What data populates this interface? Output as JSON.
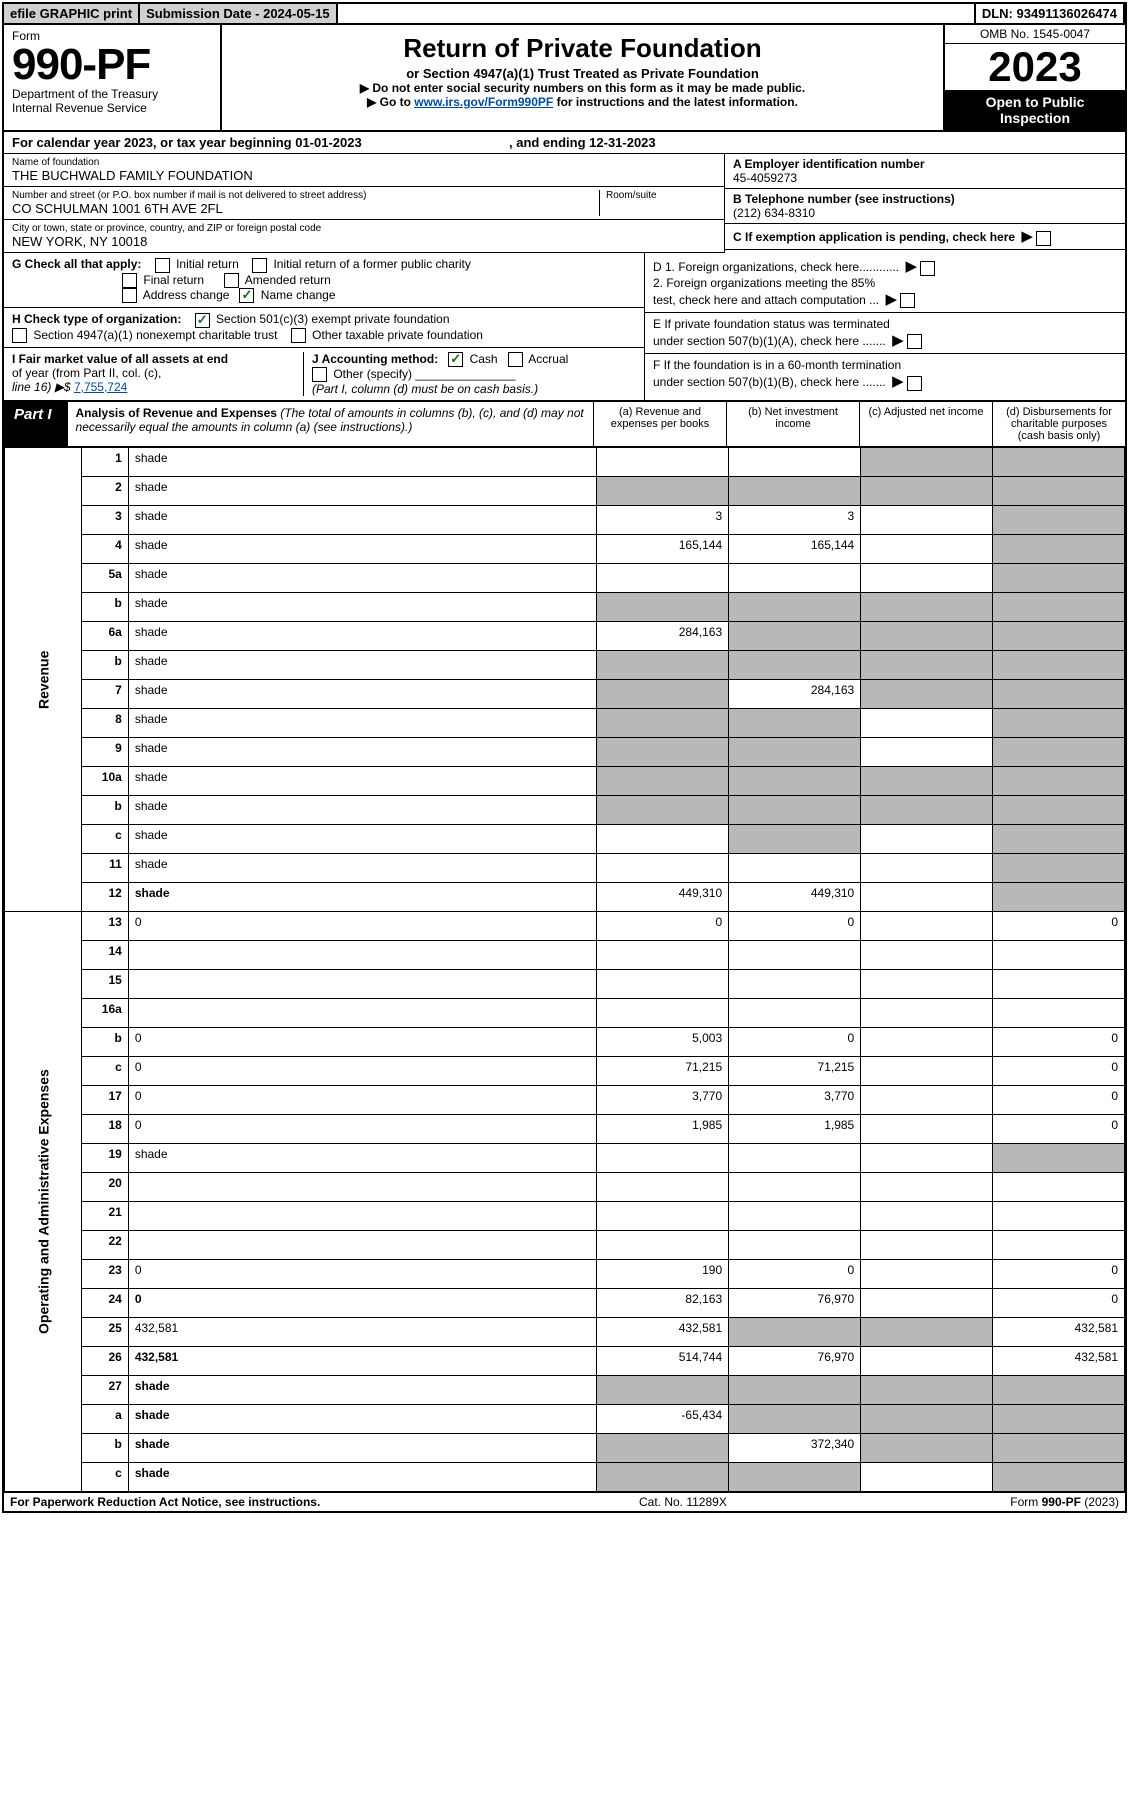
{
  "topstrip": {
    "efile": "efile GRAPHIC print",
    "submission": "Submission Date - 2024-05-15",
    "dln": "DLN: 93491136026474"
  },
  "header": {
    "form_word": "Form",
    "form_no": "990-PF",
    "dept1": "Department of the Treasury",
    "dept2": "Internal Revenue Service",
    "title": "Return of Private Foundation",
    "subtitle": "or Section 4947(a)(1) Trust Treated as Private Foundation",
    "note1": "▶ Do not enter social security numbers on this form as it may be made public.",
    "note2_pre": "▶ Go to ",
    "note2_link": "www.irs.gov/Form990PF",
    "note2_post": " for instructions and the latest information.",
    "omb": "OMB No. 1545-0047",
    "year": "2023",
    "inspect1": "Open to Public",
    "inspect2": "Inspection"
  },
  "calyear": {
    "a": "For calendar year 2023, or tax year beginning 01-01-2023",
    "b": ", and ending 12-31-2023"
  },
  "entity": {
    "name_lbl": "Name of foundation",
    "name_val": "THE BUCHWALD FAMILY FOUNDATION",
    "addr_lbl": "Number and street (or P.O. box number if mail is not delivered to street address)",
    "addr_val": "CO SCHULMAN 1001 6TH AVE 2FL",
    "room_lbl": "Room/suite",
    "city_lbl": "City or town, state or province, country, and ZIP or foreign postal code",
    "city_val": "NEW YORK, NY  10018",
    "A_lbl": "A Employer identification number",
    "A_val": "45-4059273",
    "B_lbl": "B Telephone number (see instructions)",
    "B_val": "(212) 634-8310",
    "C_lbl": "C If exemption application is pending, check here",
    "D1": "D 1. Foreign organizations, check here............",
    "D2a": "2. Foreign organizations meeting the 85%",
    "D2b": "   test, check here and attach computation ...",
    "E1": "E  If private foundation status was terminated",
    "E2": "   under section 507(b)(1)(A), check here .......",
    "F1": "F  If the foundation is in a 60-month termination",
    "F2": "   under section 507(b)(1)(B), check here .......",
    "G_lbl": "G Check all that apply:",
    "G_items": [
      "Initial return",
      "Initial return of a former public charity",
      "Final return",
      "Amended return",
      "Address change",
      "Name change"
    ],
    "H_lbl": "H Check type of organization:",
    "H1": "Section 501(c)(3) exempt private foundation",
    "H2": "Section 4947(a)(1) nonexempt charitable trust",
    "H3": "Other taxable private foundation",
    "I1": "I Fair market value of all assets at end",
    "I2": "of year (from Part II, col. (c),",
    "I3": "line 16) ▶$",
    "I_val": "7,755,724",
    "J_lbl": "J Accounting method:",
    "J_cash": "Cash",
    "J_accrual": "Accrual",
    "J_other": "Other (specify)",
    "J_note": "(Part I, column (d) must be on cash basis.)"
  },
  "part1": {
    "label": "Part I",
    "title": "Analysis of Revenue and Expenses",
    "title_note": " (The total of amounts in columns (b), (c), and (d) may not necessarily equal the amounts in column (a) (see instructions).)",
    "col_a": "(a)  Revenue and expenses per books",
    "col_b": "(b)  Net investment income",
    "col_c": "(c)  Adjusted net income",
    "col_d": "(d)  Disbursements for charitable purposes (cash basis only)"
  },
  "side": {
    "rev": "Revenue",
    "exp": "Operating and Administrative Expenses"
  },
  "rows": [
    {
      "n": "1",
      "d": "shade",
      "a": "",
      "b": "",
      "c": "shade"
    },
    {
      "n": "2",
      "d": "shade",
      "a": "shade",
      "b": "shade",
      "c": "shade"
    },
    {
      "n": "3",
      "d": "shade",
      "a": "3",
      "b": "3",
      "c": ""
    },
    {
      "n": "4",
      "d": "shade",
      "a": "165,144",
      "b": "165,144",
      "c": ""
    },
    {
      "n": "5a",
      "d": "shade",
      "a": "",
      "b": "",
      "c": ""
    },
    {
      "n": "b",
      "d": "shade",
      "a": "shade",
      "b": "shade",
      "c": "shade"
    },
    {
      "n": "6a",
      "d": "shade",
      "a": "284,163",
      "b": "shade",
      "c": "shade"
    },
    {
      "n": "b",
      "d": "shade",
      "a": "shade",
      "b": "shade",
      "c": "shade"
    },
    {
      "n": "7",
      "d": "shade",
      "a": "shade",
      "b": "284,163",
      "c": "shade"
    },
    {
      "n": "8",
      "d": "shade",
      "a": "shade",
      "b": "shade",
      "c": ""
    },
    {
      "n": "9",
      "d": "shade",
      "a": "shade",
      "b": "shade",
      "c": ""
    },
    {
      "n": "10a",
      "d": "shade",
      "a": "shade",
      "b": "shade",
      "c": "shade"
    },
    {
      "n": "b",
      "d": "shade",
      "a": "shade",
      "b": "shade",
      "c": "shade"
    },
    {
      "n": "c",
      "d": "shade",
      "a": "",
      "b": "shade",
      "c": ""
    },
    {
      "n": "11",
      "d": "shade",
      "a": "",
      "b": "",
      "c": ""
    },
    {
      "n": "12",
      "d": "shade",
      "a": "449,310",
      "b": "449,310",
      "c": "",
      "bold": true
    },
    {
      "n": "13",
      "d": "0",
      "a": "0",
      "b": "0",
      "c": ""
    },
    {
      "n": "14",
      "d": "",
      "a": "",
      "b": "",
      "c": ""
    },
    {
      "n": "15",
      "d": "",
      "a": "",
      "b": "",
      "c": ""
    },
    {
      "n": "16a",
      "d": "",
      "a": "",
      "b": "",
      "c": ""
    },
    {
      "n": "b",
      "d": "0",
      "a": "5,003",
      "b": "0",
      "c": ""
    },
    {
      "n": "c",
      "d": "0",
      "a": "71,215",
      "b": "71,215",
      "c": ""
    },
    {
      "n": "17",
      "d": "0",
      "a": "3,770",
      "b": "3,770",
      "c": ""
    },
    {
      "n": "18",
      "d": "0",
      "a": "1,985",
      "b": "1,985",
      "c": ""
    },
    {
      "n": "19",
      "d": "shade",
      "a": "",
      "b": "",
      "c": ""
    },
    {
      "n": "20",
      "d": "",
      "a": "",
      "b": "",
      "c": ""
    },
    {
      "n": "21",
      "d": "",
      "a": "",
      "b": "",
      "c": ""
    },
    {
      "n": "22",
      "d": "",
      "a": "",
      "b": "",
      "c": ""
    },
    {
      "n": "23",
      "d": "0",
      "a": "190",
      "b": "0",
      "c": ""
    },
    {
      "n": "24",
      "d": "0",
      "a": "82,163",
      "b": "76,970",
      "c": "",
      "bold": true
    },
    {
      "n": "25",
      "d": "432,581",
      "a": "432,581",
      "b": "shade",
      "c": "shade"
    },
    {
      "n": "26",
      "d": "432,581",
      "a": "514,744",
      "b": "76,970",
      "c": "",
      "bold": true
    },
    {
      "n": "27",
      "d": "shade",
      "a": "shade",
      "b": "shade",
      "c": "shade",
      "bold": true
    },
    {
      "n": "a",
      "d": "shade",
      "a": "-65,434",
      "b": "shade",
      "c": "shade",
      "bold": true
    },
    {
      "n": "b",
      "d": "shade",
      "a": "shade",
      "b": "372,340",
      "c": "shade",
      "bold": true
    },
    {
      "n": "c",
      "d": "shade",
      "a": "shade",
      "b": "shade",
      "c": "",
      "bold": true
    }
  ],
  "footer": {
    "left": "For Paperwork Reduction Act Notice, see instructions.",
    "center": "Cat. No. 11289X",
    "right": "Form 990-PF (2023)"
  },
  "colors": {
    "shade": "#b8b8b8",
    "link": "#004b9b",
    "check": "#1a6b1a"
  }
}
